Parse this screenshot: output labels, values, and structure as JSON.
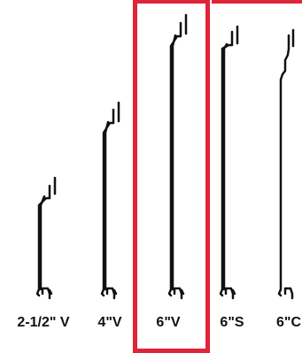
{
  "profiles": [
    {
      "label": "2-1/2\" V",
      "highlighted": false
    },
    {
      "label": "4\"V",
      "highlighted": false
    },
    {
      "label": "6\"V",
      "highlighted": true
    },
    {
      "label": "6\"S",
      "highlighted": false
    },
    {
      "label": "6\"C",
      "highlighted": false
    }
  ],
  "colors": {
    "highlight": "#e0243a",
    "stroke": "#111111",
    "background": "#ffffff"
  }
}
